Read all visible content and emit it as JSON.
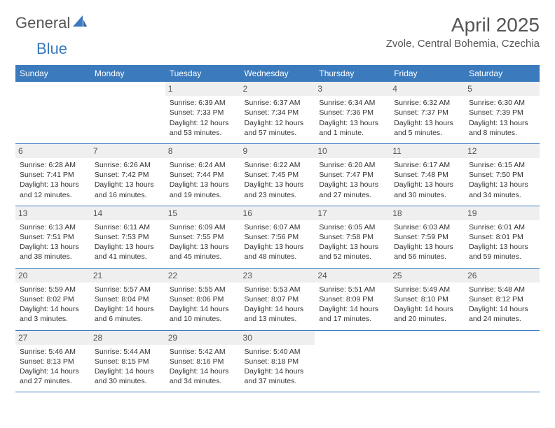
{
  "brand": {
    "part1": "General",
    "part2": "Blue"
  },
  "header": {
    "month_title": "April 2025",
    "location": "Zvole, Central Bohemia, Czechia"
  },
  "colors": {
    "header_bg": "#3a7abd",
    "header_fg": "#ffffff",
    "daynum_bg": "#efefef",
    "text": "#333333",
    "title": "#555555"
  },
  "daynames": [
    "Sunday",
    "Monday",
    "Tuesday",
    "Wednesday",
    "Thursday",
    "Friday",
    "Saturday"
  ],
  "weeks": [
    [
      null,
      null,
      {
        "n": "1",
        "sr": "6:39 AM",
        "ss": "7:33 PM",
        "dl": "12 hours and 53 minutes."
      },
      {
        "n": "2",
        "sr": "6:37 AM",
        "ss": "7:34 PM",
        "dl": "12 hours and 57 minutes."
      },
      {
        "n": "3",
        "sr": "6:34 AM",
        "ss": "7:36 PM",
        "dl": "13 hours and 1 minute."
      },
      {
        "n": "4",
        "sr": "6:32 AM",
        "ss": "7:37 PM",
        "dl": "13 hours and 5 minutes."
      },
      {
        "n": "5",
        "sr": "6:30 AM",
        "ss": "7:39 PM",
        "dl": "13 hours and 8 minutes."
      }
    ],
    [
      {
        "n": "6",
        "sr": "6:28 AM",
        "ss": "7:41 PM",
        "dl": "13 hours and 12 minutes."
      },
      {
        "n": "7",
        "sr": "6:26 AM",
        "ss": "7:42 PM",
        "dl": "13 hours and 16 minutes."
      },
      {
        "n": "8",
        "sr": "6:24 AM",
        "ss": "7:44 PM",
        "dl": "13 hours and 19 minutes."
      },
      {
        "n": "9",
        "sr": "6:22 AM",
        "ss": "7:45 PM",
        "dl": "13 hours and 23 minutes."
      },
      {
        "n": "10",
        "sr": "6:20 AM",
        "ss": "7:47 PM",
        "dl": "13 hours and 27 minutes."
      },
      {
        "n": "11",
        "sr": "6:17 AM",
        "ss": "7:48 PM",
        "dl": "13 hours and 30 minutes."
      },
      {
        "n": "12",
        "sr": "6:15 AM",
        "ss": "7:50 PM",
        "dl": "13 hours and 34 minutes."
      }
    ],
    [
      {
        "n": "13",
        "sr": "6:13 AM",
        "ss": "7:51 PM",
        "dl": "13 hours and 38 minutes."
      },
      {
        "n": "14",
        "sr": "6:11 AM",
        "ss": "7:53 PM",
        "dl": "13 hours and 41 minutes."
      },
      {
        "n": "15",
        "sr": "6:09 AM",
        "ss": "7:55 PM",
        "dl": "13 hours and 45 minutes."
      },
      {
        "n": "16",
        "sr": "6:07 AM",
        "ss": "7:56 PM",
        "dl": "13 hours and 48 minutes."
      },
      {
        "n": "17",
        "sr": "6:05 AM",
        "ss": "7:58 PM",
        "dl": "13 hours and 52 minutes."
      },
      {
        "n": "18",
        "sr": "6:03 AM",
        "ss": "7:59 PM",
        "dl": "13 hours and 56 minutes."
      },
      {
        "n": "19",
        "sr": "6:01 AM",
        "ss": "8:01 PM",
        "dl": "13 hours and 59 minutes."
      }
    ],
    [
      {
        "n": "20",
        "sr": "5:59 AM",
        "ss": "8:02 PM",
        "dl": "14 hours and 3 minutes."
      },
      {
        "n": "21",
        "sr": "5:57 AM",
        "ss": "8:04 PM",
        "dl": "14 hours and 6 minutes."
      },
      {
        "n": "22",
        "sr": "5:55 AM",
        "ss": "8:06 PM",
        "dl": "14 hours and 10 minutes."
      },
      {
        "n": "23",
        "sr": "5:53 AM",
        "ss": "8:07 PM",
        "dl": "14 hours and 13 minutes."
      },
      {
        "n": "24",
        "sr": "5:51 AM",
        "ss": "8:09 PM",
        "dl": "14 hours and 17 minutes."
      },
      {
        "n": "25",
        "sr": "5:49 AM",
        "ss": "8:10 PM",
        "dl": "14 hours and 20 minutes."
      },
      {
        "n": "26",
        "sr": "5:48 AM",
        "ss": "8:12 PM",
        "dl": "14 hours and 24 minutes."
      }
    ],
    [
      {
        "n": "27",
        "sr": "5:46 AM",
        "ss": "8:13 PM",
        "dl": "14 hours and 27 minutes."
      },
      {
        "n": "28",
        "sr": "5:44 AM",
        "ss": "8:15 PM",
        "dl": "14 hours and 30 minutes."
      },
      {
        "n": "29",
        "sr": "5:42 AM",
        "ss": "8:16 PM",
        "dl": "14 hours and 34 minutes."
      },
      {
        "n": "30",
        "sr": "5:40 AM",
        "ss": "8:18 PM",
        "dl": "14 hours and 37 minutes."
      },
      null,
      null,
      null
    ]
  ],
  "labels": {
    "sunrise": "Sunrise:",
    "sunset": "Sunset:",
    "daylight": "Daylight:"
  }
}
